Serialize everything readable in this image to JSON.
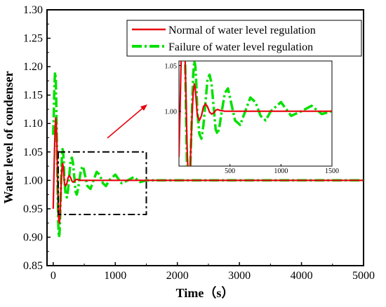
{
  "chart_data": {
    "type": "line",
    "title": "",
    "xlabel": "Time（s）",
    "ylabel": "Water level of condenser",
    "xlim": [
      -100,
      5000
    ],
    "ylim": [
      0.85,
      1.3
    ],
    "xticks": [
      0,
      1000,
      2000,
      3000,
      4000,
      5000
    ],
    "yticks": [
      0.85,
      0.9,
      0.95,
      1.0,
      1.05,
      1.1,
      1.15,
      1.2,
      1.25,
      1.3
    ],
    "ytick_labels": [
      "0.85",
      "0.90",
      "0.95",
      "1.00",
      "1.05",
      "1.10",
      "1.15",
      "1.20",
      "1.25",
      "1.30"
    ],
    "grid": false,
    "legend_position": "top-right",
    "series": [
      {
        "name": "Normal of water level regulation",
        "color": "#e8000b",
        "style": "solid",
        "x": [
          0,
          10,
          20,
          30,
          40,
          50,
          60,
          70,
          80,
          90,
          100,
          110,
          120,
          130,
          140,
          150,
          160,
          170,
          180,
          200,
          220,
          240,
          260,
          280,
          300,
          320,
          340,
          360,
          380,
          400,
          450,
          500,
          600,
          800,
          1000,
          1500,
          2000,
          3000,
          4000,
          5000
        ],
        "y": [
          0.95,
          1.0,
          1.05,
          1.09,
          1.11,
          1.1,
          1.06,
          1.01,
          0.96,
          0.93,
          0.925,
          0.94,
          0.97,
          1.0,
          1.02,
          1.03,
          1.025,
          1.01,
          0.995,
          0.99,
          0.995,
          1.005,
          1.008,
          1.005,
          0.999,
          0.997,
          0.998,
          1.001,
          1.002,
          1.001,
          1.0,
          1.0,
          1.0,
          1.0,
          1.0,
          1.0,
          1.0,
          1.0,
          1.0,
          1.0
        ]
      },
      {
        "name": "Failure of water level regulation",
        "color": "#00e000",
        "style": "dash-dot",
        "x": [
          0,
          10,
          20,
          30,
          40,
          50,
          60,
          70,
          80,
          90,
          100,
          110,
          120,
          130,
          140,
          150,
          160,
          170,
          180,
          200,
          220,
          240,
          260,
          280,
          300,
          320,
          340,
          360,
          380,
          400,
          420,
          450,
          480,
          500,
          550,
          600,
          650,
          700,
          750,
          800,
          850,
          900,
          1000,
          1100,
          1200,
          1300,
          1400,
          1500,
          2000,
          3000,
          4000,
          5000
        ],
        "y": [
          1.08,
          1.12,
          1.17,
          1.19,
          1.18,
          1.13,
          1.06,
          0.99,
          0.93,
          0.9,
          0.905,
          0.93,
          0.97,
          1.01,
          1.04,
          1.055,
          1.05,
          1.03,
          1.0,
          0.975,
          0.97,
          0.985,
          1.01,
          1.035,
          1.04,
          1.03,
          1.005,
          0.98,
          0.975,
          0.985,
          1.0,
          1.02,
          1.025,
          1.015,
          0.99,
          0.985,
          1.0,
          1.015,
          1.01,
          0.995,
          0.99,
          1.0,
          1.01,
          0.995,
          1.0,
          1.006,
          0.997,
          1.0,
          1.0,
          1.0,
          1.0,
          1.0
        ]
      }
    ],
    "inset": {
      "xlim": [
        0,
        1500
      ],
      "ylim": [
        0.94,
        1.055
      ],
      "xticks": [
        500,
        1000,
        1500
      ],
      "yticks": [
        1.0,
        1.05
      ],
      "ytick_labels": [
        "1.00",
        "1.05"
      ]
    },
    "zoom_box": {
      "xlim": [
        80,
        1500
      ],
      "ylim": [
        0.94,
        1.05
      ]
    }
  }
}
